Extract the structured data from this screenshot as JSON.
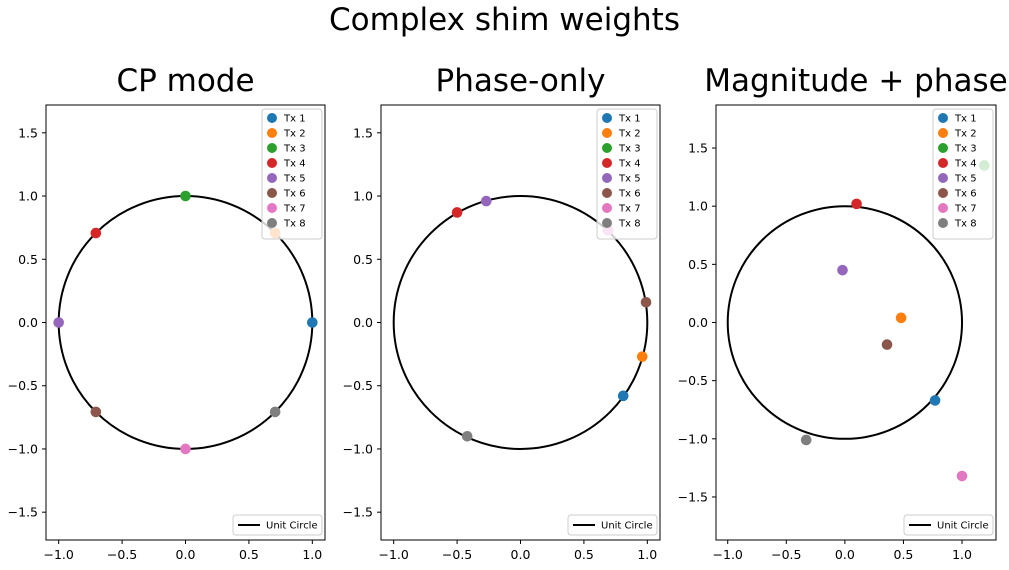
{
  "figure": {
    "suptitle": "Complex shim weights"
  },
  "chart_data": [
    {
      "type": "scatter",
      "title": "CP mode",
      "xlabel": "",
      "ylabel": "",
      "xlim": [
        -1.1,
        1.1
      ],
      "ylim": [
        -1.72,
        1.72
      ],
      "xticks": [
        -1.0,
        -0.5,
        0.0,
        0.5,
        1.0
      ],
      "yticks": [
        -1.5,
        -1.0,
        -0.5,
        0.0,
        0.5,
        1.0,
        1.5
      ],
      "xtick_labels": [
        "−1.0",
        "−0.5",
        "0.0",
        "0.5",
        "1.0"
      ],
      "ytick_labels": [
        "−1.5",
        "−1.0",
        "−0.5",
        "0.0",
        "0.5",
        "1.0",
        "1.5"
      ],
      "unit_circle": {
        "label": "Unit Circle",
        "color": "#000000"
      },
      "legend_points_position": "top-right",
      "legend_circle_position": "lower-right",
      "series": [
        {
          "name": "Tx 1",
          "color": "#1f77b4",
          "x": 1.0,
          "y": 0.0
        },
        {
          "name": "Tx 2",
          "color": "#ff7f0e",
          "x": 0.707,
          "y": 0.707
        },
        {
          "name": "Tx 3",
          "color": "#2ca02c",
          "x": 0.0,
          "y": 1.0
        },
        {
          "name": "Tx 4",
          "color": "#d62728",
          "x": -0.707,
          "y": 0.707
        },
        {
          "name": "Tx 5",
          "color": "#9467bd",
          "x": -1.0,
          "y": 0.0
        },
        {
          "name": "Tx 6",
          "color": "#8c564b",
          "x": -0.707,
          "y": -0.707
        },
        {
          "name": "Tx 7",
          "color": "#e377c2",
          "x": 0.0,
          "y": -1.0
        },
        {
          "name": "Tx 8",
          "color": "#7f7f7f",
          "x": 0.707,
          "y": -0.707
        }
      ]
    },
    {
      "type": "scatter",
      "title": "Phase-only",
      "xlabel": "",
      "ylabel": "",
      "xlim": [
        -1.1,
        1.1
      ],
      "ylim": [
        -1.72,
        1.72
      ],
      "xticks": [
        -1.0,
        -0.5,
        0.0,
        0.5,
        1.0
      ],
      "yticks": [
        -1.5,
        -1.0,
        -0.5,
        0.0,
        0.5,
        1.0,
        1.5
      ],
      "xtick_labels": [
        "−1.0",
        "−0.5",
        "0.0",
        "0.5",
        "1.0"
      ],
      "ytick_labels": [
        "−1.5",
        "−1.0",
        "−0.5",
        "0.0",
        "0.5",
        "1.0",
        "1.5"
      ],
      "unit_circle": {
        "label": "Unit Circle",
        "color": "#000000"
      },
      "legend_points_position": "top-right",
      "legend_circle_position": "lower-right",
      "series": [
        {
          "name": "Tx 1",
          "color": "#1f77b4",
          "x": 0.81,
          "y": -0.58
        },
        {
          "name": "Tx 2",
          "color": "#ff7f0e",
          "x": 0.96,
          "y": -0.27
        },
        {
          "name": "Tx 3",
          "color": "#2ca02c",
          "x": 0.69,
          "y": 0.73
        },
        {
          "name": "Tx 4",
          "color": "#d62728",
          "x": -0.5,
          "y": 0.87
        },
        {
          "name": "Tx 5",
          "color": "#9467bd",
          "x": -0.27,
          "y": 0.96
        },
        {
          "name": "Tx 6",
          "color": "#8c564b",
          "x": 0.99,
          "y": 0.16
        },
        {
          "name": "Tx 7",
          "color": "#e377c2",
          "x": 0.69,
          "y": 0.73
        },
        {
          "name": "Tx 8",
          "color": "#7f7f7f",
          "x": -0.42,
          "y": -0.9
        }
      ]
    },
    {
      "type": "scatter",
      "title": "Magnitude + phase",
      "xlabel": "",
      "ylabel": "",
      "xlim": [
        -1.1,
        1.29
      ],
      "ylim": [
        -1.87,
        1.87
      ],
      "xticks": [
        -1.0,
        -0.5,
        0.0,
        0.5,
        1.0
      ],
      "yticks": [
        -1.5,
        -1.0,
        -0.5,
        0.0,
        0.5,
        1.0,
        1.5
      ],
      "xtick_labels": [
        "−1.0",
        "−0.5",
        "0.0",
        "0.5",
        "1.0"
      ],
      "ytick_labels": [
        "−1.5",
        "−1.0",
        "−0.5",
        "0.0",
        "0.5",
        "1.0",
        "1.5"
      ],
      "unit_circle": {
        "label": "Unit Circle",
        "color": "#000000"
      },
      "legend_points_position": "top-right",
      "legend_circle_position": "lower-right",
      "series": [
        {
          "name": "Tx 1",
          "color": "#1f77b4",
          "x": 0.77,
          "y": -0.67
        },
        {
          "name": "Tx 2",
          "color": "#ff7f0e",
          "x": 0.48,
          "y": 0.04
        },
        {
          "name": "Tx 3",
          "color": "#2ca02c",
          "x": 1.19,
          "y": 1.35
        },
        {
          "name": "Tx 4",
          "color": "#d62728",
          "x": 0.1,
          "y": 1.02
        },
        {
          "name": "Tx 5",
          "color": "#9467bd",
          "x": -0.02,
          "y": 0.45
        },
        {
          "name": "Tx 6",
          "color": "#8c564b",
          "x": 0.36,
          "y": -0.19
        },
        {
          "name": "Tx 7",
          "color": "#e377c2",
          "x": 1.0,
          "y": -1.32
        },
        {
          "name": "Tx 8",
          "color": "#7f7f7f",
          "x": -0.33,
          "y": -1.01
        }
      ]
    }
  ]
}
